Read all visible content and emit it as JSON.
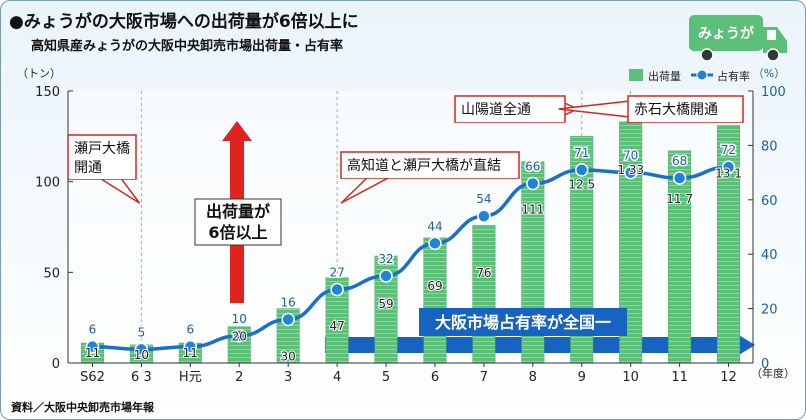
{
  "header": {
    "title": "●みょうがの大阪市場への出荷量が6倍以上に",
    "subtitle": "高知県産みょうがの大阪中央卸売市場出荷量・占有率"
  },
  "source": "資料／大阪中央卸売市場年報",
  "logo_text": "みょうが",
  "colors": {
    "bar": "#5cbf78",
    "line": "#1a6fc9",
    "point": "#1e84d8",
    "callout_border": "#d6261f",
    "arrow_red": "#e0241d",
    "arrow_blue": "#1763c2"
  },
  "annotations": {
    "callout_seto": "瀬戸大橋\n開通",
    "callout_kochi": "高知道と瀬戸大橋が直結",
    "callout_sanyo": "山陽道全通",
    "callout_akashi": "赤石大橋開通",
    "arrow_up": "出荷量が\n6倍以上",
    "arrow_right": "大阪市場占有率が全国一"
  },
  "chart_data": {
    "type": "bar",
    "categories": [
      "S62",
      "6 3",
      "H元",
      "2",
      "3",
      "4",
      "5",
      "6",
      "7",
      "8",
      "9",
      "10",
      "11",
      "12"
    ],
    "ylabel_left": "（トン）",
    "ylabel_right": "（%）",
    "xlabel": "（年度）",
    "ylim_left": [
      0,
      150
    ],
    "ylim_right": [
      0,
      100
    ],
    "yticks_left": [
      "0",
      "50",
      "100",
      "150"
    ],
    "yticks_right": [
      "0",
      "20",
      "40",
      "60",
      "80",
      "100"
    ],
    "grid": "vertical dashed at 6 3, 4, 9, 10",
    "legend_position": "top-right",
    "series": [
      {
        "name": "出荷量",
        "kind": "bar",
        "axis": "left",
        "values": [
          11,
          10,
          11,
          20,
          30,
          47,
          59,
          69,
          76,
          111,
          125,
          133,
          117,
          131
        ],
        "labels": [
          "11",
          "10",
          "11",
          "20",
          "30",
          "47",
          "59",
          "69",
          "76",
          "111",
          "12 5",
          "1 33",
          "11 7",
          "13 1"
        ]
      },
      {
        "name": "占有率",
        "kind": "line",
        "axis": "right",
        "values": [
          6,
          5,
          6,
          10,
          16,
          27,
          32,
          44,
          54,
          66,
          71,
          70,
          68,
          72
        ],
        "labels": [
          "6",
          "5",
          "6",
          "10",
          "16",
          "27",
          "32",
          "44",
          "54",
          "66",
          "71",
          "70",
          "68",
          "72"
        ]
      }
    ]
  }
}
